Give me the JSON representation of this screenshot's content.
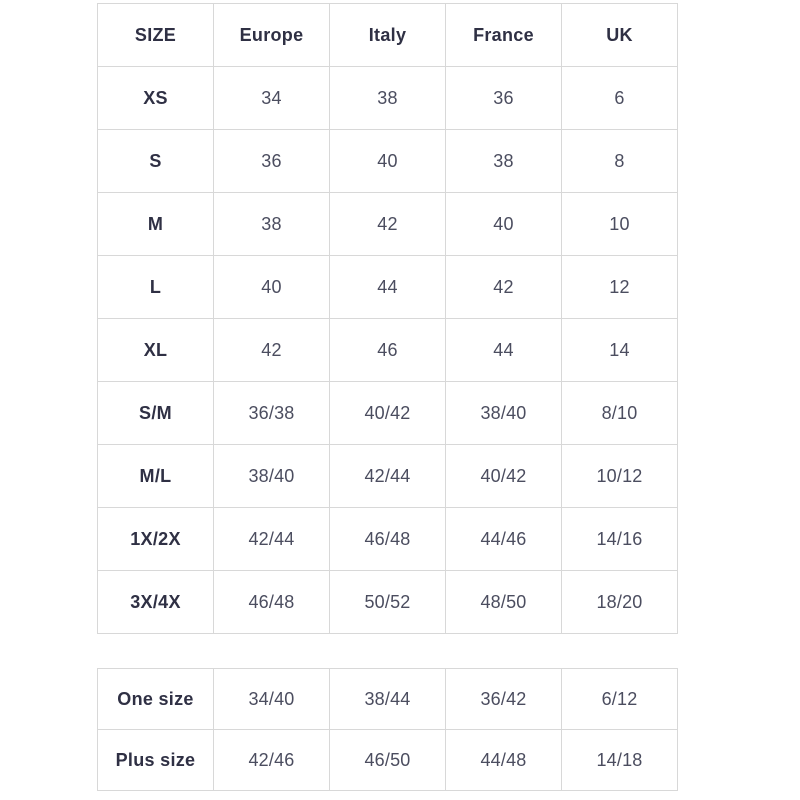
{
  "colors": {
    "background": "#ffffff",
    "border": "#d8d8d8",
    "label_text": "#2f3044",
    "value_text": "#4b4d5f"
  },
  "chart_data": {
    "type": "table",
    "columns": [
      "SIZE",
      "Europe",
      "Italy",
      "France",
      "UK"
    ],
    "rows": [
      [
        "XS",
        "34",
        "38",
        "36",
        "6"
      ],
      [
        "S",
        "36",
        "40",
        "38",
        "8"
      ],
      [
        "M",
        "38",
        "42",
        "40",
        "10"
      ],
      [
        "L",
        "40",
        "44",
        "42",
        "12"
      ],
      [
        "XL",
        "42",
        "46",
        "44",
        "14"
      ],
      [
        "S/M",
        "36/38",
        "40/42",
        "38/40",
        "8/10"
      ],
      [
        "M/L",
        "38/40",
        "42/44",
        "40/42",
        "10/12"
      ],
      [
        "1X/2X",
        "42/44",
        "46/48",
        "44/46",
        "14/16"
      ],
      [
        "3X/4X",
        "46/48",
        "50/52",
        "48/50",
        "18/20"
      ]
    ],
    "extra_rows": [
      [
        "One size",
        "34/40",
        "38/44",
        "36/42",
        "6/12"
      ],
      [
        "Plus size",
        "42/46",
        "46/50",
        "44/48",
        "14/18"
      ]
    ],
    "layout": {
      "grid": "full-borders",
      "header_row": true,
      "first_column_bold": true
    }
  }
}
